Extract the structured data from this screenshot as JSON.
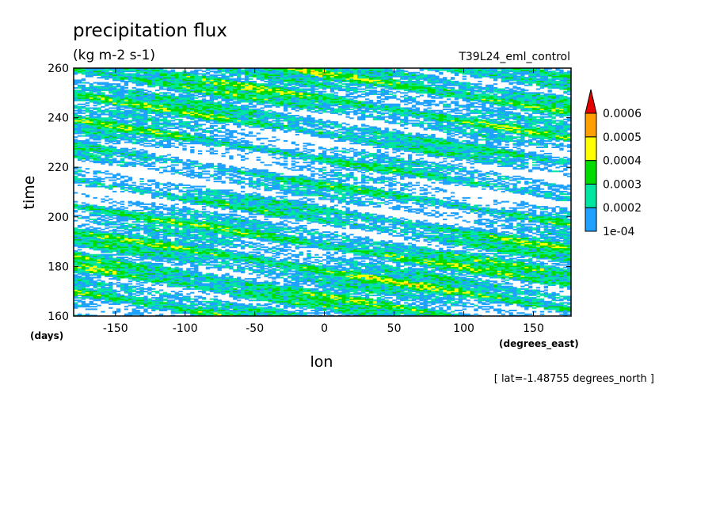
{
  "chart_data": {
    "type": "heatmap",
    "title": "precipitation flux",
    "units": "(kg m-2 s-1)",
    "experiment": "T39L24_eml_control",
    "xlabel": "lon",
    "xunits": "(degrees_east)",
    "ylabel": "time",
    "yunits": "(days)",
    "xlim": [
      -180,
      177
    ],
    "ylim": [
      160,
      260
    ],
    "xticks": [
      "-150",
      "-100",
      "-50",
      "0",
      "50",
      "100",
      "150"
    ],
    "yticks": [
      "160",
      "180",
      "200",
      "220",
      "240",
      "260"
    ],
    "xtick_values": [
      -150,
      -100,
      -50,
      0,
      50,
      100,
      150
    ],
    "ytick_values": [
      160,
      180,
      200,
      220,
      240,
      260
    ],
    "annotation": "[ lat=-1.48755 degrees_north ]",
    "colorbar": {
      "labels": [
        "1e-04",
        "0.0002",
        "0.0003",
        "0.0004",
        "0.0005",
        "0.0006"
      ],
      "levels": [
        0.0001,
        0.0002,
        0.0003,
        0.0004,
        0.0005,
        0.0006
      ],
      "colors": [
        "#1fa2ff",
        "#00e6a0",
        "#00dc00",
        "#ffff00",
        "#ff9f00",
        "#e60000"
      ]
    }
  }
}
